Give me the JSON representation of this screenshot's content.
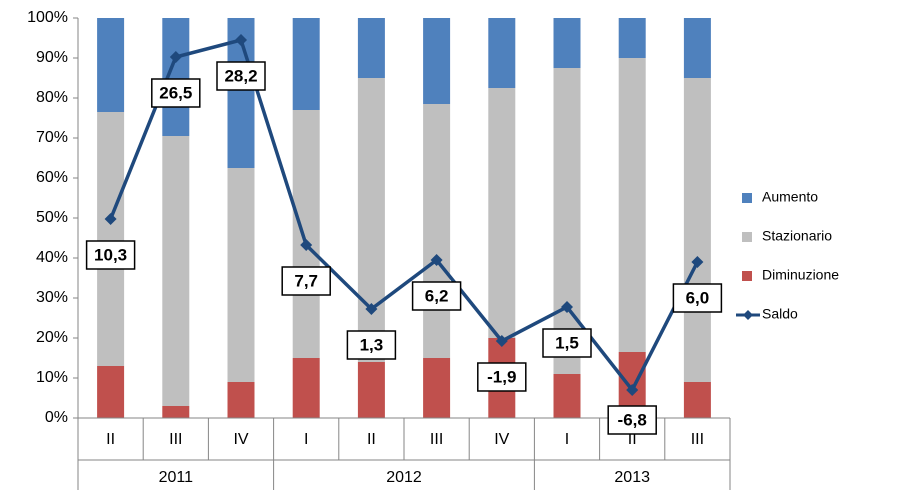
{
  "chart_data": {
    "type": "stacked_bar_line",
    "categories": [
      "II",
      "III",
      "IV",
      "I",
      "II",
      "III",
      "IV",
      "I",
      "II",
      "III"
    ],
    "category_groups": [
      "2011",
      "2011",
      "2011",
      "2012",
      "2012",
      "2012",
      "2012",
      "2013",
      "2013",
      "2013"
    ],
    "series": [
      {
        "name": "Aumento",
        "type": "bar",
        "color": "#4f81bd",
        "values": [
          23.5,
          29.5,
          37.5,
          23,
          15,
          21.5,
          17.5,
          12.5,
          10,
          15
        ]
      },
      {
        "name": "Stazionario",
        "type": "bar",
        "color": "#bfbfbf",
        "values": [
          63.5,
          67.5,
          53.5,
          62,
          71,
          63.5,
          62.5,
          76.5,
          73.5,
          76
        ]
      },
      {
        "name": "Diminuzione",
        "type": "bar",
        "color": "#c0504d",
        "values": [
          13,
          3,
          9,
          15,
          14,
          15,
          20,
          11,
          16.5,
          9
        ]
      },
      {
        "name": "Saldo",
        "type": "line",
        "axis": "y2",
        "color": "#1f497d",
        "values": [
          10.3,
          26.5,
          28.2,
          7.7,
          1.3,
          6.2,
          -1.9,
          1.5,
          -6.8,
          6.0
        ],
        "value_labels": [
          "10,3",
          "26,5",
          "28,2",
          "7,7",
          "1,3",
          "6,2",
          "-1,9",
          "1,5",
          "-6,8",
          "6,0"
        ]
      }
    ],
    "ylim": [
      0,
      100
    ],
    "yticks": [
      {
        "value": 0,
        "label": "0%"
      },
      {
        "value": 10,
        "label": "10%"
      },
      {
        "value": 20,
        "label": "20%"
      },
      {
        "value": 30,
        "label": "30%"
      },
      {
        "value": 40,
        "label": "40%"
      },
      {
        "value": 50,
        "label": "50%"
      },
      {
        "value": 60,
        "label": "60%"
      },
      {
        "value": 70,
        "label": "70%"
      },
      {
        "value": 80,
        "label": "80%"
      },
      {
        "value": 90,
        "label": "90%"
      },
      {
        "value": 100,
        "label": "100%"
      }
    ],
    "y2lim": [
      -9.6,
      30.4
    ],
    "legend": "right"
  }
}
